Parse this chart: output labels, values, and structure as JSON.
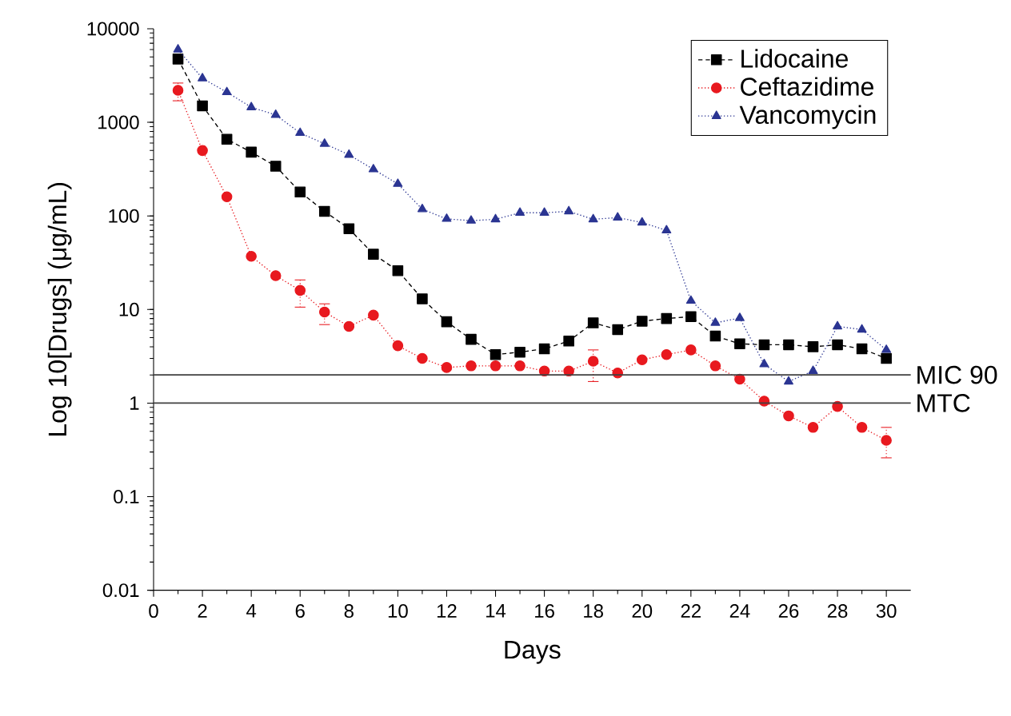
{
  "chart_data": {
    "type": "line",
    "xlabel": "Days",
    "ylabel": "Log 10[Drugs] (μg/mL)",
    "x": [
      1,
      2,
      3,
      4,
      5,
      6,
      7,
      8,
      9,
      10,
      11,
      12,
      13,
      14,
      15,
      16,
      17,
      18,
      19,
      20,
      21,
      22,
      23,
      24,
      25,
      26,
      27,
      28,
      29,
      30
    ],
    "series": [
      {
        "name": "Lidocaine",
        "color": "#000000",
        "marker": "square",
        "line_style": "dashed",
        "values": [
          4750,
          1500,
          660,
          480,
          340,
          180,
          112,
          73,
          39,
          26,
          13,
          7.4,
          4.8,
          3.3,
          3.5,
          3.8,
          4.6,
          7.2,
          6.1,
          7.5,
          8,
          8.4,
          5.2,
          4.3,
          4.2,
          4.2,
          4,
          4.2,
          3.8,
          3.0
        ]
      },
      {
        "name": "Ceftazidime",
        "color": "#e8191f",
        "marker": "circle",
        "line_style": "dotted",
        "values": [
          2200,
          500,
          160,
          37,
          23,
          16,
          9.4,
          6.6,
          8.7,
          4.1,
          3.0,
          2.4,
          2.5,
          2.5,
          2.5,
          2.2,
          2.2,
          2.8,
          2.1,
          2.9,
          3.3,
          3.7,
          2.5,
          1.8,
          1.05,
          0.73,
          0.55,
          0.92,
          0.55,
          0.4
        ],
        "errors": [
          [
            1700,
            2630
          ],
          null,
          null,
          null,
          null,
          [
            10.6,
            20.7
          ],
          [
            6.9,
            11.5
          ],
          null,
          null,
          null,
          null,
          null,
          null,
          null,
          null,
          null,
          null,
          [
            1.7,
            3.7
          ],
          null,
          null,
          null,
          null,
          null,
          null,
          null,
          null,
          null,
          null,
          null,
          [
            0.26,
            0.55
          ]
        ]
      },
      {
        "name": "Vancomycin",
        "color": "#2b3592",
        "marker": "triangle",
        "line_style": "dotted",
        "values": [
          6000,
          2950,
          2100,
          1450,
          1200,
          770,
          590,
          450,
          315,
          220,
          118,
          93,
          89,
          92,
          108,
          108,
          112,
          92,
          96,
          85,
          70,
          12.4,
          7.2,
          8.1,
          2.6,
          1.7,
          2.2,
          6.6,
          6.1,
          3.7
        ]
      }
    ],
    "log": true,
    "ylim": [
      0.01,
      10000
    ],
    "yticks": [
      0.01,
      0.1,
      1,
      10,
      100,
      1000,
      10000
    ],
    "xlim": [
      0,
      31
    ],
    "xticks": [
      0,
      2,
      4,
      6,
      8,
      10,
      12,
      14,
      16,
      18,
      20,
      22,
      24,
      26,
      28,
      30
    ],
    "ref_lines": [
      {
        "axis": "y",
        "value": 2,
        "label": "MIC 90",
        "color": "#404040"
      },
      {
        "axis": "y",
        "value": 1,
        "label": "MTC",
        "color": "#404040"
      }
    ],
    "grid": false,
    "legend": "top right"
  }
}
